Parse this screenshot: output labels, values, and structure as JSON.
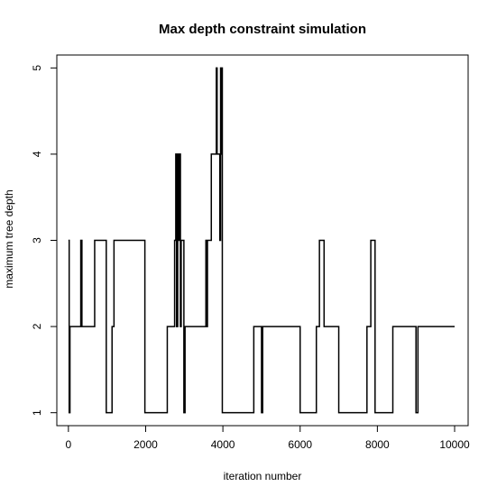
{
  "chart_data": {
    "type": "line",
    "title": "Max depth constraint simulation",
    "xlabel": "iteration number",
    "ylabel": "maximum tree depth",
    "xlim": [
      -300,
      10350
    ],
    "ylim": [
      0.85,
      5.15
    ],
    "grid": false,
    "x_ticks": [
      0,
      2000,
      4000,
      6000,
      8000,
      10000
    ],
    "y_ticks": [
      1,
      2,
      3,
      4,
      5
    ],
    "series": [
      {
        "style": "step",
        "color": "#000000",
        "points": [
          [
            0,
            3
          ],
          [
            20,
            3
          ],
          [
            20,
            1
          ],
          [
            40,
            1
          ],
          [
            40,
            2
          ],
          [
            320,
            2
          ],
          [
            320,
            3
          ],
          [
            350,
            3
          ],
          [
            350,
            2
          ],
          [
            680,
            2
          ],
          [
            680,
            3
          ],
          [
            980,
            3
          ],
          [
            980,
            1
          ],
          [
            1130,
            1
          ],
          [
            1130,
            2
          ],
          [
            1180,
            2
          ],
          [
            1180,
            3
          ],
          [
            1980,
            3
          ],
          [
            1980,
            1
          ],
          [
            2560,
            1
          ],
          [
            2560,
            2
          ],
          [
            2750,
            2
          ],
          [
            2750,
            3
          ],
          [
            2780,
            3
          ],
          [
            2780,
            4
          ],
          [
            2800,
            4
          ],
          [
            2800,
            2
          ],
          [
            2830,
            2
          ],
          [
            2830,
            4
          ],
          [
            2850,
            4
          ],
          [
            2850,
            3
          ],
          [
            2870,
            3
          ],
          [
            2870,
            4
          ],
          [
            2900,
            4
          ],
          [
            2900,
            2
          ],
          [
            2920,
            2
          ],
          [
            2920,
            3
          ],
          [
            2990,
            3
          ],
          [
            2990,
            1
          ],
          [
            3020,
            1
          ],
          [
            3020,
            2
          ],
          [
            3560,
            2
          ],
          [
            3560,
            3
          ],
          [
            3580,
            3
          ],
          [
            3580,
            2
          ],
          [
            3600,
            2
          ],
          [
            3600,
            3
          ],
          [
            3700,
            3
          ],
          [
            3700,
            4
          ],
          [
            3830,
            4
          ],
          [
            3830,
            5
          ],
          [
            3850,
            5
          ],
          [
            3850,
            4
          ],
          [
            3920,
            4
          ],
          [
            3920,
            3
          ],
          [
            3940,
            3
          ],
          [
            3940,
            5
          ],
          [
            3960,
            5
          ],
          [
            3960,
            4
          ],
          [
            3975,
            4
          ],
          [
            3975,
            5
          ],
          [
            3985,
            5
          ],
          [
            3985,
            1
          ],
          [
            4800,
            1
          ],
          [
            4800,
            2
          ],
          [
            5000,
            2
          ],
          [
            5000,
            1
          ],
          [
            5030,
            1
          ],
          [
            5030,
            2
          ],
          [
            6000,
            2
          ],
          [
            6000,
            1
          ],
          [
            6420,
            1
          ],
          [
            6420,
            2
          ],
          [
            6500,
            2
          ],
          [
            6500,
            3
          ],
          [
            6620,
            3
          ],
          [
            6620,
            2
          ],
          [
            7000,
            2
          ],
          [
            7000,
            1
          ],
          [
            7730,
            1
          ],
          [
            7730,
            2
          ],
          [
            7830,
            2
          ],
          [
            7830,
            3
          ],
          [
            7940,
            3
          ],
          [
            7940,
            1
          ],
          [
            8400,
            1
          ],
          [
            8400,
            2
          ],
          [
            9000,
            2
          ],
          [
            9000,
            1
          ],
          [
            9050,
            1
          ],
          [
            9050,
            2
          ],
          [
            10000,
            2
          ]
        ]
      }
    ]
  }
}
